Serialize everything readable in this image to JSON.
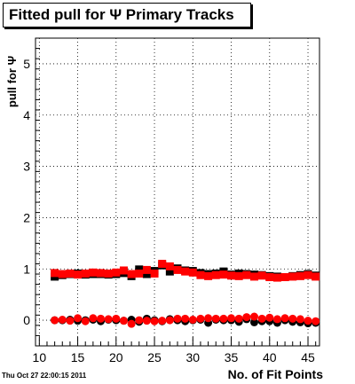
{
  "chart_data": {
    "type": "scatter",
    "title": "Fitted pull for Ψ  Primary Tracks",
    "xlabel": "No. of Fit Points",
    "ylabel": "pull for Ψ",
    "xlim": [
      9.5,
      46.5
    ],
    "ylim": [
      -0.5,
      5.5
    ],
    "x_ticks": [
      10,
      15,
      20,
      25,
      30,
      35,
      40,
      45
    ],
    "y_ticks": [
      0,
      1,
      2,
      3,
      4,
      5
    ],
    "grid": true,
    "x": [
      12,
      13,
      14,
      15,
      16,
      17,
      18,
      19,
      20,
      21,
      22,
      23,
      24,
      25,
      26,
      27,
      28,
      29,
      30,
      31,
      32,
      33,
      34,
      35,
      36,
      37,
      38,
      39,
      40,
      41,
      42,
      43,
      44,
      45,
      46
    ],
    "series": [
      {
        "role": "sigma-black",
        "color": "#000000",
        "marker": "square",
        "values": [
          0.85,
          0.88,
          0.9,
          0.91,
          0.89,
          0.9,
          0.9,
          0.89,
          0.9,
          0.92,
          0.86,
          0.99,
          0.9,
          0.96,
          1.07,
          0.95,
          1.01,
          0.97,
          0.96,
          0.92,
          0.9,
          0.91,
          0.95,
          0.89,
          0.91,
          0.9,
          0.89,
          0.88,
          0.86,
          0.85,
          0.84,
          0.86,
          0.88,
          0.9,
          0.87
        ]
      },
      {
        "role": "sigma-red",
        "color": "#ff0000",
        "marker": "square",
        "values": [
          0.92,
          0.9,
          0.91,
          0.89,
          0.91,
          0.93,
          0.92,
          0.91,
          0.93,
          0.97,
          0.9,
          0.91,
          0.98,
          0.91,
          1.1,
          1.05,
          0.98,
          0.95,
          0.93,
          0.88,
          0.86,
          0.88,
          0.89,
          0.87,
          0.86,
          0.88,
          0.85,
          0.87,
          0.84,
          0.83,
          0.84,
          0.85,
          0.86,
          0.88,
          0.85
        ]
      },
      {
        "role": "mean-black",
        "color": "#000000",
        "marker": "circle",
        "values": [
          0.0,
          0.0,
          0.01,
          -0.01,
          0.0,
          0.01,
          -0.02,
          0.01,
          0.0,
          -0.01,
          0.01,
          -0.03,
          0.03,
          0.0,
          -0.02,
          0.02,
          0.0,
          -0.02,
          0.0,
          0.01,
          -0.05,
          0.01,
          0.0,
          0.0,
          -0.03,
          0.02,
          -0.04,
          -0.02,
          -0.02,
          -0.05,
          0.0,
          -0.03,
          -0.04,
          -0.06,
          -0.05
        ]
      },
      {
        "role": "mean-red",
        "color": "#ff0000",
        "marker": "circle",
        "values": [
          0.0,
          0.01,
          -0.01,
          0.04,
          -0.02,
          0.04,
          0.03,
          0.02,
          0.03,
          -0.01,
          -0.07,
          0.0,
          -0.01,
          -0.02,
          -0.01,
          0.0,
          0.03,
          0.03,
          0.01,
          0.03,
          0.04,
          0.03,
          0.03,
          0.04,
          0.03,
          0.06,
          0.07,
          0.03,
          0.05,
          0.02,
          0.04,
          0.03,
          0.02,
          -0.01,
          -0.02
        ]
      }
    ]
  },
  "timestamp": "Thu Oct 27 22:00:15 2011"
}
